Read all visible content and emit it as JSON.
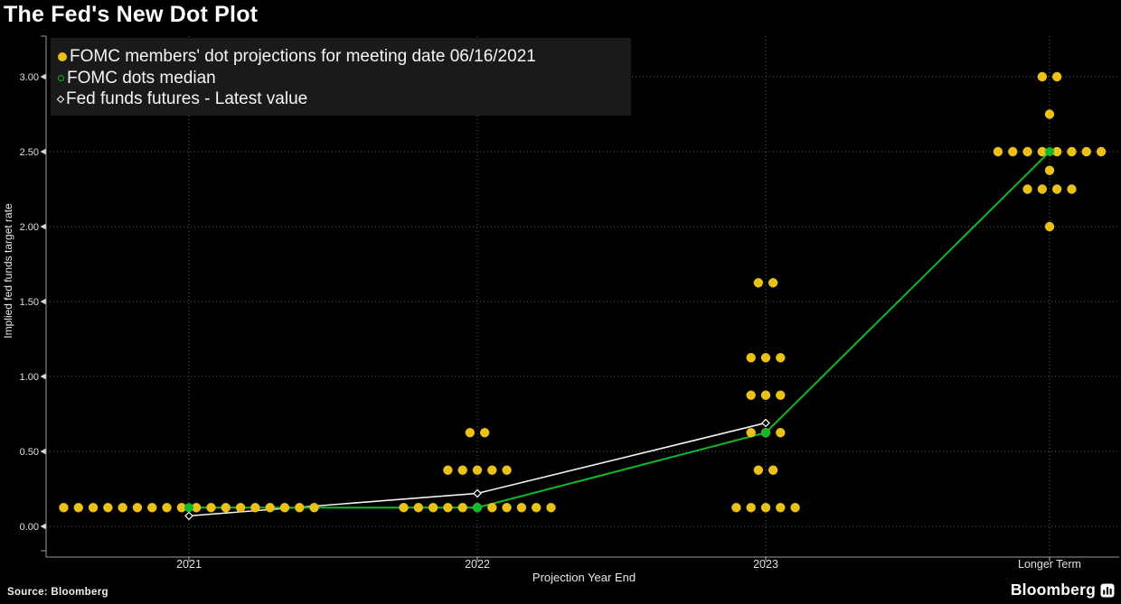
{
  "title": "The Fed's New Dot Plot",
  "source": "Source: Bloomberg",
  "brand": {
    "name": "Bloomberg"
  },
  "legend": [
    {
      "marker": "filled-circle",
      "color": "#e9c119",
      "label": "FOMC members' dot projections for meeting date 06/16/2021"
    },
    {
      "marker": "open-circle",
      "color": "#0eb92d",
      "label": "FOMC dots median"
    },
    {
      "marker": "open-diamond",
      "color": "#ffffff",
      "label": "Fed funds futures - Latest value"
    }
  ],
  "colors": {
    "background": "#000000",
    "dots": "#e9c119",
    "median_line": "#0eb92d",
    "futures_line": "#f2f2f2",
    "gridline": "#5f5f5f",
    "axis": "#9a9a9a",
    "tick_text": "#e0e0e0"
  },
  "chart_data": {
    "type": "scatter",
    "title": "The Fed's New Dot Plot",
    "xlabel": "Projection Year End",
    "ylabel": "Implied fed funds target rate",
    "categories": [
      "2021",
      "2022",
      "2023",
      "Longer Term"
    ],
    "y_ticks": [
      0.0,
      0.5,
      1.0,
      1.5,
      2.0,
      2.5,
      3.0
    ],
    "ylim": [
      -0.2,
      3.27
    ],
    "grid": true,
    "legend_position": "top-left",
    "series": [
      {
        "name": "FOMC members' dot projections for meeting date 06/16/2021",
        "type": "scatter",
        "color": "#e9c119",
        "dots": {
          "2021": [
            {
              "rate": 0.125,
              "count": 18
            }
          ],
          "2022": [
            {
              "rate": 0.125,
              "count": 11
            },
            {
              "rate": 0.375,
              "count": 5
            },
            {
              "rate": 0.625,
              "count": 2
            }
          ],
          "2023": [
            {
              "rate": 0.125,
              "count": 5
            },
            {
              "rate": 0.375,
              "count": 2
            },
            {
              "rate": 0.625,
              "count": 3
            },
            {
              "rate": 0.875,
              "count": 3
            },
            {
              "rate": 1.125,
              "count": 3
            },
            {
              "rate": 1.625,
              "count": 2
            }
          ],
          "Longer Term": [
            {
              "rate": 2.0,
              "count": 1
            },
            {
              "rate": 2.25,
              "count": 4
            },
            {
              "rate": 2.375,
              "count": 1
            },
            {
              "rate": 2.5,
              "count": 8
            },
            {
              "rate": 2.75,
              "count": 1
            },
            {
              "rate": 3.0,
              "count": 2
            }
          ]
        }
      },
      {
        "name": "FOMC dots median",
        "type": "line",
        "color": "#0eb92d",
        "x": [
          "2021",
          "2022",
          "2023",
          "Longer Term"
        ],
        "values": [
          0.125,
          0.125,
          0.625,
          2.5
        ]
      },
      {
        "name": "Fed funds futures - Latest value",
        "type": "line",
        "color": "#f2f2f2",
        "x": [
          "2021",
          "2022",
          "2023"
        ],
        "values": [
          0.07,
          0.22,
          0.69
        ]
      }
    ]
  }
}
